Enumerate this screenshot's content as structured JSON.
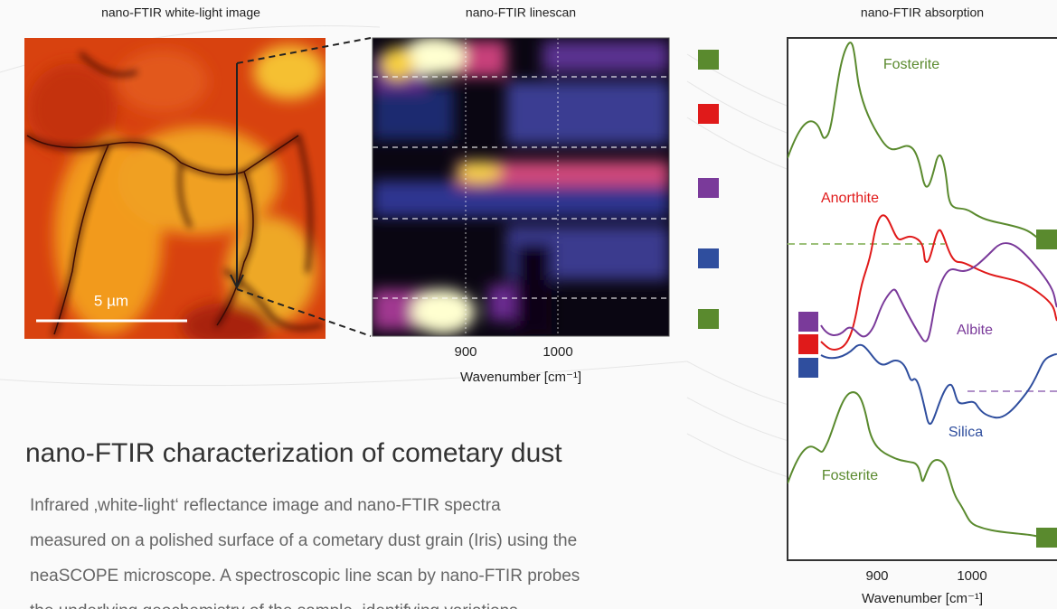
{
  "panels": {
    "white_light": {
      "title": "nano-FTIR white-light image",
      "scale_bar": "5 µm"
    },
    "linescan": {
      "title": "nano-FTIR linescan",
      "x_ticks": [
        "900",
        "1000"
      ],
      "x_label": "Wavenumber [cm⁻¹]"
    },
    "absorption": {
      "title": "nano-FTIR absorption",
      "x_ticks": [
        "900",
        "1000"
      ],
      "x_label": "Wavenumber [cm⁻¹]",
      "curve_labels": [
        "Fosterite",
        "Anorthite",
        "Albite",
        "Silica",
        "Fosterite"
      ]
    }
  },
  "heading": "nano-FTIR characterization of cometary dust",
  "paragraph": [
    "Infrared ‚white-light‘ reflectance image and nano-FTIR spectra",
    "measured on a polished surface of a cometary dust grain (Iris) using the",
    "neaSCOPE microscope. A spectroscopic line scan by nano-FTIR probes",
    "the underlying geochemistry of the sample, identifying variations"
  ]
}
